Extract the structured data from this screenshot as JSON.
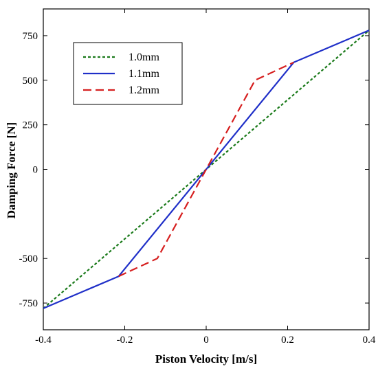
{
  "chart_data": {
    "type": "line",
    "title": "",
    "xlabel": "Piston Velocity [m/s]",
    "ylabel": "Damping Force [N]",
    "xlim": [
      -0.4,
      0.4
    ],
    "ylim": [
      -900,
      900
    ],
    "xticks": [
      {
        "value": -0.4,
        "label": "-0.4"
      },
      {
        "value": -0.2,
        "label": "-0.2"
      },
      {
        "value": 0,
        "label": "0"
      },
      {
        "value": 0.2,
        "label": "0.2"
      },
      {
        "value": 0.4,
        "label": "0.4"
      }
    ],
    "yticks": [
      {
        "value": -750,
        "label": "-750"
      },
      {
        "value": -500,
        "label": "-500"
      },
      {
        "value": 0,
        "label": "0"
      },
      {
        "value": 250,
        "label": "250"
      },
      {
        "value": 500,
        "label": "500"
      },
      {
        "value": 750,
        "label": "750"
      }
    ],
    "grid": false,
    "legend_position": "top-left",
    "series": [
      {
        "name": "1.0mm",
        "color": "#1a7a1a",
        "dash": "dotted",
        "points": [
          [
            -0.4,
            -780
          ],
          [
            0.4,
            780
          ]
        ]
      },
      {
        "name": "1.1mm",
        "color": "#1f2fc8",
        "dash": "solid",
        "points": [
          [
            -0.4,
            -780
          ],
          [
            -0.215,
            -600
          ],
          [
            0.215,
            600
          ],
          [
            0.4,
            780
          ]
        ]
      },
      {
        "name": "1.2mm",
        "color": "#d61f1f",
        "dash": "dashed",
        "points": [
          [
            -0.215,
            -600
          ],
          [
            -0.12,
            -500
          ],
          [
            0.12,
            500
          ],
          [
            0.215,
            600
          ]
        ]
      }
    ]
  }
}
